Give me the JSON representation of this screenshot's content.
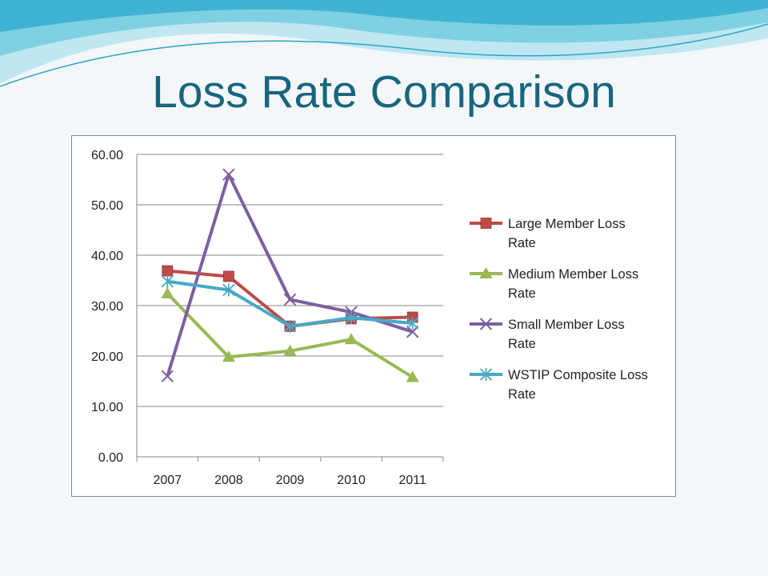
{
  "slide": {
    "title": "Loss Rate Comparison"
  },
  "chart_data": {
    "type": "line",
    "title": "",
    "xlabel": "",
    "ylabel": "",
    "categories": [
      "2007",
      "2008",
      "2009",
      "2010",
      "2011"
    ],
    "ylim": [
      0,
      60
    ],
    "y_ticks": [
      "0.00",
      "10.00",
      "20.00",
      "30.00",
      "40.00",
      "50.00",
      "60.00"
    ],
    "grid": true,
    "legend_position": "right",
    "series": [
      {
        "name": "Large Member Loss Rate",
        "legend_lines": [
          "Large Member Loss",
          "Rate"
        ],
        "color": "#be4b48",
        "marker": "square",
        "values": [
          36.9,
          35.8,
          25.9,
          27.4,
          27.7
        ]
      },
      {
        "name": "Medium Member Loss Rate",
        "legend_lines": [
          "Medium Member Loss",
          "Rate"
        ],
        "color": "#98b954",
        "marker": "triangle",
        "values": [
          32.4,
          19.8,
          21.0,
          23.3,
          15.8
        ]
      },
      {
        "name": "Small Member Loss Rate",
        "legend_lines": [
          "Small Member Loss",
          "Rate"
        ],
        "color": "#7d5fa0",
        "marker": "x",
        "values": [
          16.0,
          56.0,
          31.2,
          28.7,
          24.8
        ]
      },
      {
        "name": "WSTIP Composite Loss Rate",
        "legend_lines": [
          "WSTIP Composite Loss",
          "Rate"
        ],
        "color": "#46aac5",
        "marker": "star",
        "values": [
          34.8,
          33.1,
          25.9,
          27.6,
          26.5
        ]
      }
    ]
  }
}
